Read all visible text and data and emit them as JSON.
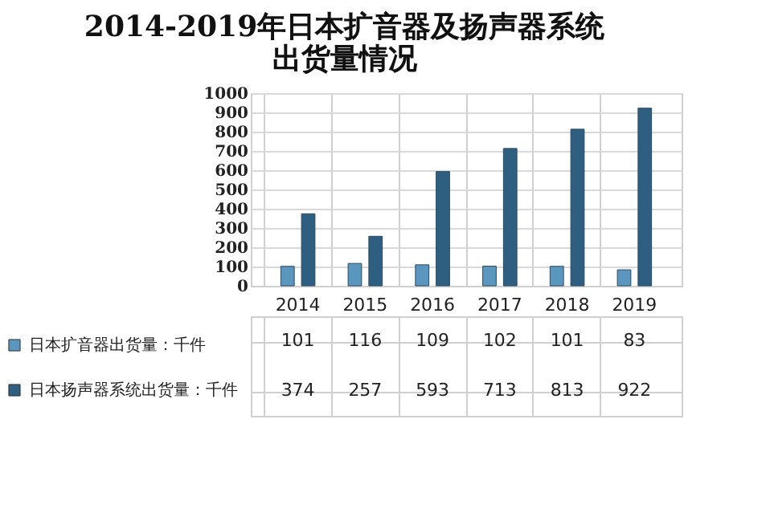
{
  "chart_data": {
    "type": "bar",
    "title": "2014-2019年日本扩音器及扬声器系统出货量情况",
    "categories": [
      "2014",
      "2015",
      "2016",
      "2017",
      "2018",
      "2019"
    ],
    "series": [
      {
        "name": "日本扩音器出货量：千件",
        "color": "#5a96bd",
        "values": [
          101,
          116,
          109,
          102,
          101,
          83
        ]
      },
      {
        "name": "日本扬声器系统出货量：千件",
        "color": "#2f5f80",
        "values": [
          374,
          257,
          593,
          713,
          813,
          922
        ]
      }
    ],
    "ylim": [
      0,
      1000
    ],
    "yticks": [
      0,
      100,
      200,
      300,
      400,
      500,
      600,
      700,
      800,
      900,
      1000
    ],
    "grid": "y",
    "legend": "left",
    "data_labels": true
  }
}
